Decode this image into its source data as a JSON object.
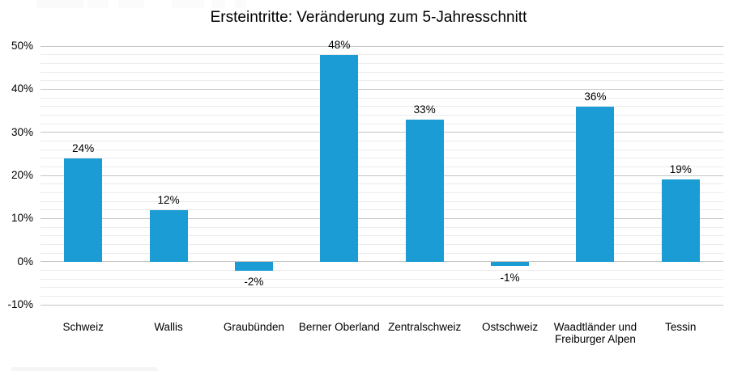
{
  "chart_data": {
    "type": "bar",
    "title": "Ersteintritte: Veränderung zum 5-Jahresschnitt",
    "categories": [
      "Schweiz",
      "Wallis",
      "Graubünden",
      "Berner Oberland",
      "Zentralschweiz",
      "Ostschweiz",
      "Waadtländer und Freiburger Alpen",
      "Tessin"
    ],
    "values": [
      24,
      12,
      -2,
      48,
      33,
      -1,
      36,
      19
    ],
    "data_labels": [
      "24%",
      "12%",
      "-2%",
      "48%",
      "33%",
      "-1%",
      "36%",
      "19%"
    ],
    "xlabel": "",
    "ylabel": "",
    "ylim": [
      -10,
      50
    ],
    "ytick_step": 10,
    "minor_tick_step": 2,
    "ytick_labels": [
      "50%",
      "40%",
      "30%",
      "20%",
      "10%",
      "0%",
      "-10%"
    ],
    "grid": "major and minor horizontal gridlines",
    "legend": false
  },
  "colors": {
    "bar": "#1B9CD5",
    "major_grid": "#C4C4C4",
    "minor_grid": "#EBEBEB",
    "text": "#000000",
    "background": "#FFFFFF",
    "crop_border": "#7F7F7F"
  }
}
